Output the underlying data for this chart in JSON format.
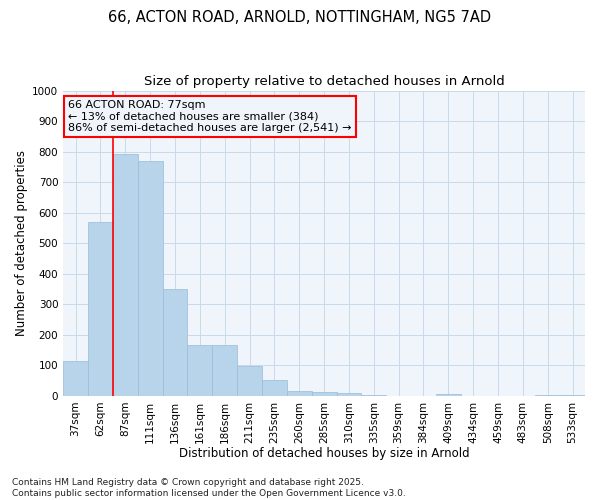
{
  "title_line1": "66, ACTON ROAD, ARNOLD, NOTTINGHAM, NG5 7AD",
  "title_line2": "Size of property relative to detached houses in Arnold",
  "xlabel": "Distribution of detached houses by size in Arnold",
  "ylabel": "Number of detached properties",
  "categories": [
    "37sqm",
    "62sqm",
    "87sqm",
    "111sqm",
    "136sqm",
    "161sqm",
    "186sqm",
    "211sqm",
    "235sqm",
    "260sqm",
    "285sqm",
    "310sqm",
    "335sqm",
    "359sqm",
    "384sqm",
    "409sqm",
    "434sqm",
    "459sqm",
    "483sqm",
    "508sqm",
    "533sqm"
  ],
  "values": [
    113,
    568,
    793,
    770,
    350,
    168,
    168,
    97,
    52,
    17,
    12,
    8,
    2,
    0,
    0,
    7,
    1,
    0,
    0,
    3,
    3
  ],
  "bar_color": "#b8d4ea",
  "bar_edge_color": "#99bcd8",
  "grid_color": "#c8daea",
  "bg_color": "#ffffff",
  "plot_bg_color": "#f0f4fb",
  "vline_x_index": 1.5,
  "vline_color": "red",
  "annotation_text": "66 ACTON ROAD: 77sqm\n← 13% of detached houses are smaller (384)\n86% of semi-detached houses are larger (2,541) →",
  "annotation_box_color": "red",
  "ylim": [
    0,
    1000
  ],
  "yticks": [
    0,
    100,
    200,
    300,
    400,
    500,
    600,
    700,
    800,
    900,
    1000
  ],
  "footer": "Contains HM Land Registry data © Crown copyright and database right 2025.\nContains public sector information licensed under the Open Government Licence v3.0.",
  "title_fontsize": 10.5,
  "subtitle_fontsize": 9.5,
  "axis_label_fontsize": 8.5,
  "tick_fontsize": 7.5,
  "annotation_fontsize": 8,
  "footer_fontsize": 6.5
}
